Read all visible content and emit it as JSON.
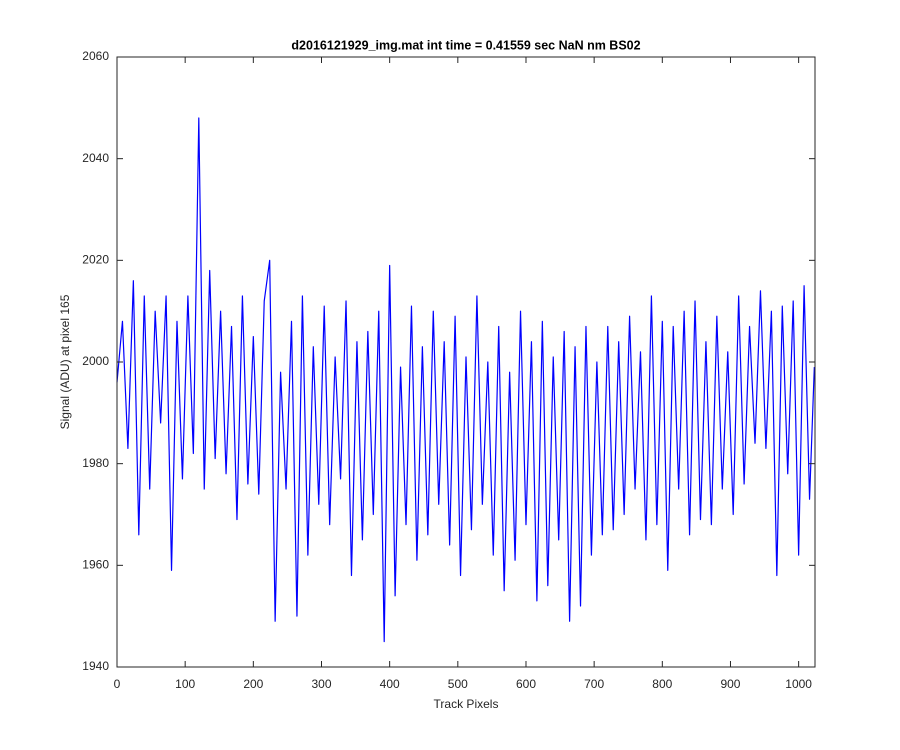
{
  "chart_data": {
    "type": "line",
    "title": "d2016121929_img.mat int time = 0.41559 sec  NaN nm BS02",
    "x_label": "Track Pixels",
    "y_label": "Signal (ADU) at pixel 165",
    "xlim": [
      0,
      1024
    ],
    "ylim": [
      1940,
      2060
    ],
    "xticks": [
      0,
      100,
      200,
      300,
      400,
      500,
      600,
      700,
      800,
      900,
      1000
    ],
    "yticks": [
      1940,
      1960,
      1980,
      2000,
      2020,
      2040,
      2060
    ],
    "grid": false,
    "x": [
      0,
      8,
      16,
      24,
      32,
      40,
      48,
      56,
      64,
      72,
      80,
      88,
      96,
      104,
      112,
      120,
      128,
      136,
      144,
      152,
      160,
      168,
      176,
      184,
      192,
      200,
      208,
      216,
      224,
      232,
      240,
      248,
      256,
      264,
      272,
      280,
      288,
      296,
      304,
      312,
      320,
      328,
      336,
      344,
      352,
      360,
      368,
      376,
      384,
      392,
      400,
      408,
      416,
      424,
      432,
      440,
      448,
      456,
      464,
      472,
      480,
      488,
      496,
      504,
      512,
      520,
      528,
      536,
      544,
      552,
      560,
      568,
      576,
      584,
      592,
      600,
      608,
      616,
      624,
      632,
      640,
      648,
      656,
      664,
      672,
      680,
      688,
      696,
      704,
      712,
      720,
      728,
      736,
      744,
      752,
      760,
      768,
      776,
      784,
      792,
      800,
      808,
      816,
      824,
      832,
      840,
      848,
      856,
      864,
      872,
      880,
      888,
      896,
      904,
      912,
      920,
      928,
      936,
      944,
      952,
      960,
      968,
      976,
      984,
      992,
      1000,
      1008,
      1016,
      1023
    ],
    "series": [
      {
        "name": "signal",
        "color": "#0000ff",
        "values": [
          1996,
          2008,
          1983,
          2016,
          1966,
          2013,
          1975,
          2010,
          1988,
          2013,
          1959,
          2008,
          1977,
          2013,
          1982,
          2048,
          1975,
          2018,
          1981,
          2010,
          1978,
          2007,
          1969,
          2013,
          1976,
          2005,
          1974,
          2012,
          2020,
          1949,
          1998,
          1975,
          2008,
          1950,
          2013,
          1962,
          2003,
          1972,
          2011,
          1968,
          2001,
          1977,
          2012,
          1958,
          2004,
          1965,
          2006,
          1970,
          2010,
          1945,
          2019,
          1954,
          1999,
          1968,
          2011,
          1961,
          2003,
          1966,
          2010,
          1972,
          2004,
          1964,
          2009,
          1958,
          2001,
          1967,
          2013,
          1972,
          2000,
          1962,
          2007,
          1955,
          1998,
          1961,
          2010,
          1968,
          2004,
          1953,
          2008,
          1956,
          2001,
          1965,
          2006,
          1949,
          2003,
          1952,
          2007,
          1962,
          2000,
          1966,
          2007,
          1967,
          2004,
          1970,
          2009,
          1975,
          2002,
          1965,
          2013,
          1968,
          2008,
          1959,
          2007,
          1975,
          2010,
          1966,
          2012,
          1969,
          2004,
          1968,
          2009,
          1975,
          2002,
          1970,
          2013,
          1976,
          2007,
          1984,
          2014,
          1983,
          2010,
          1958,
          2011,
          1978,
          2012,
          1962,
          2015,
          1973,
          1999
        ]
      }
    ]
  }
}
